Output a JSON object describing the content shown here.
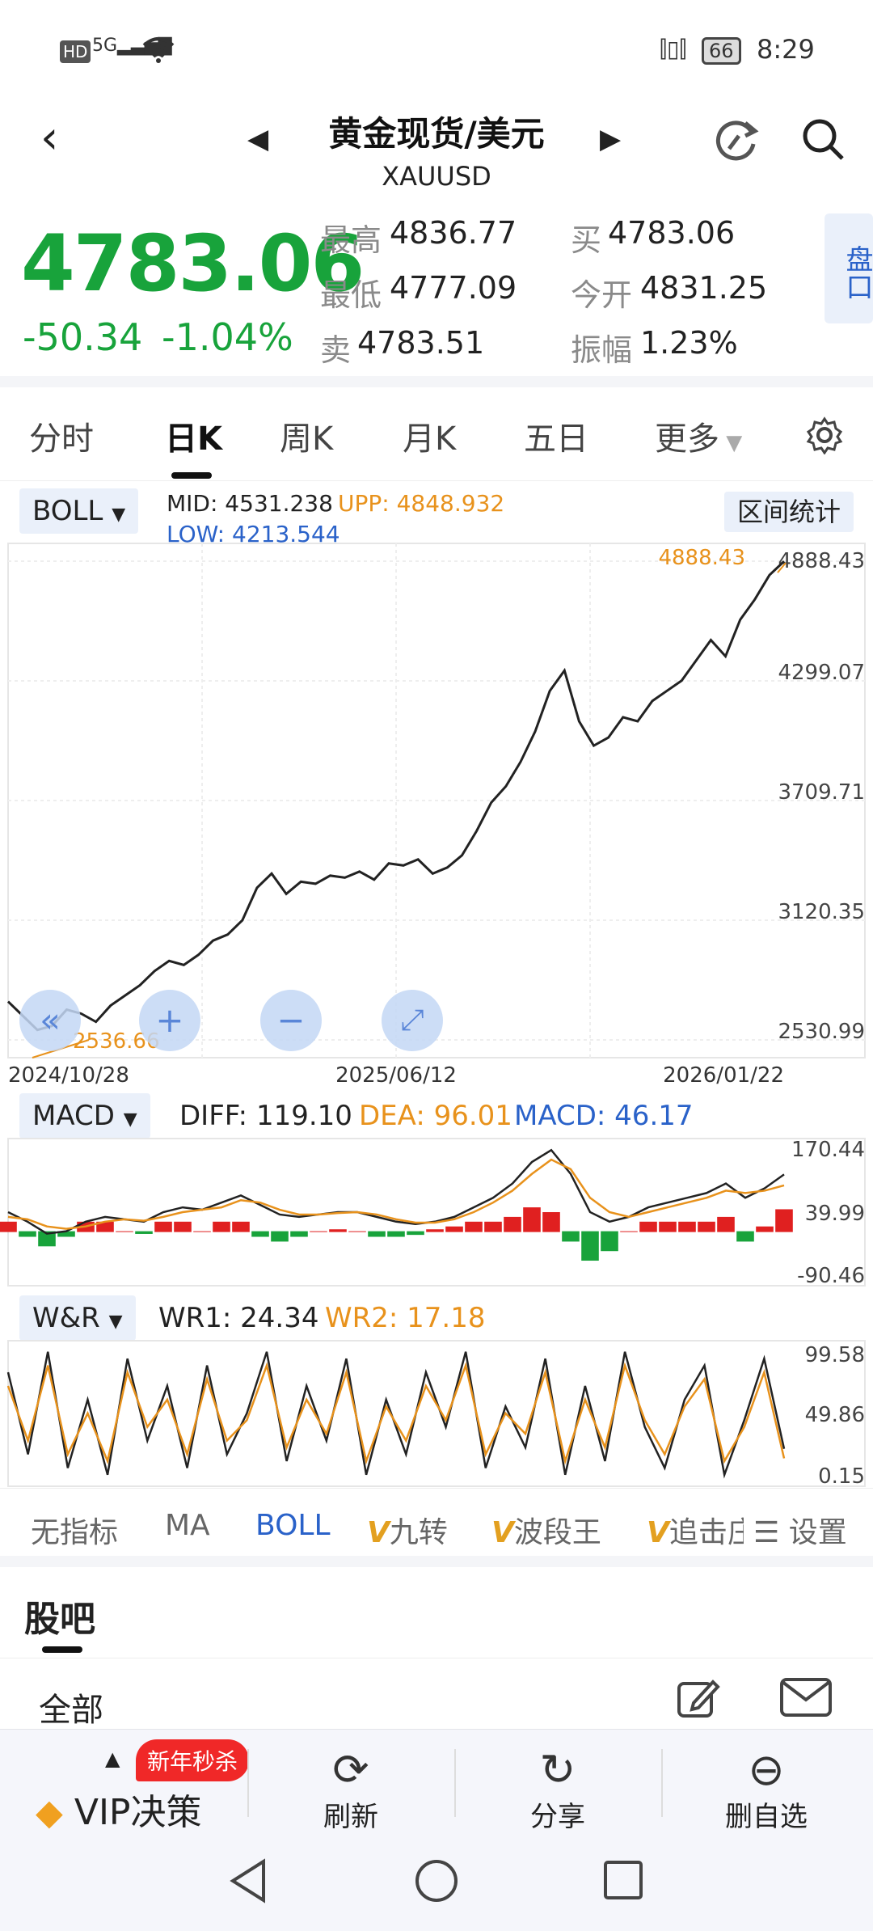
{
  "status_bar": {
    "left_badges": "HD 5G",
    "battery": "66",
    "time": "8:29"
  },
  "header": {
    "title": "黄金现货/美元",
    "subtitle": "XAUUSD",
    "icons": [
      "back-icon",
      "prev-icon",
      "next-icon",
      "share-refresh-icon",
      "search-icon"
    ]
  },
  "quote": {
    "price": "4783.06",
    "change": "-50.34",
    "change_pct": "-1.04%",
    "high_label": "最高",
    "high": "4836.77",
    "low_label": "最低",
    "low": "4777.09",
    "sell_label": "卖",
    "sell": "4783.51",
    "buy_label": "买",
    "buy": "4783.06",
    "open_label": "今开",
    "open": "4831.25",
    "amp_label": "振幅",
    "amp": "1.23%",
    "pankou": "盘口"
  },
  "tabs": [
    "分时",
    "日K",
    "周K",
    "月K",
    "五日",
    "更多"
  ],
  "active_tab": "日K",
  "boll": {
    "selector": "BOLL",
    "mid": "MID: 4531.238",
    "upp": "UPP: 4848.932",
    "low": "LOW: 4213.544",
    "range_stats": "区间统计",
    "max_label": "4888.43",
    "min_label": "2536.66",
    "y_ticks": [
      "4888.43",
      "4299.07",
      "3709.71",
      "3120.35",
      "2530.99"
    ],
    "x_dates": [
      "2024/10/28",
      "2025/06/12",
      "2026/01/22"
    ]
  },
  "macd": {
    "selector": "MACD",
    "diff": "DIFF: 119.10",
    "dea": "DEA: 96.01",
    "macd": "MACD: 46.17",
    "y_ticks": [
      "170.44",
      "39.99",
      "-90.46"
    ]
  },
  "wr": {
    "selector": "W&R",
    "wr1": "WR1: 24.34",
    "wr2": "WR2: 17.18",
    "y_ticks": [
      "99.58",
      "49.86",
      "0.15"
    ]
  },
  "indicator_tabs": [
    "无指标",
    "MA",
    "BOLL",
    "九转",
    "波段王",
    "追击庄",
    "设置"
  ],
  "indicator_active": "BOLL",
  "forum": {
    "title": "股吧",
    "filter": "全部"
  },
  "bottom_bar": {
    "vip": "VIP决策",
    "promo": "新年秒杀",
    "refresh": "刷新",
    "share": "分享",
    "remove": "删自选"
  },
  "colors": {
    "green": "#18a33b",
    "red": "#e02020",
    "orange": "#e8921c",
    "blue": "#2a62c9"
  },
  "chart_data": [
    {
      "type": "line",
      "title": "",
      "x_range": [
        "2024/10/28",
        "2026/01/22"
      ],
      "ylim": [
        2530.99,
        4888.43
      ],
      "series": [
        {
          "name": "",
          "values": [
            2720,
            2650,
            2580,
            2600,
            2680,
            2660,
            2620,
            2700,
            2750,
            2800,
            2870,
            2920,
            2900,
            2950,
            3020,
            3050,
            3120,
            3280,
            3350,
            3250,
            3310,
            3300,
            3340,
            3330,
            3360,
            3320,
            3400,
            3390,
            3420,
            3350,
            3380,
            3440,
            3560,
            3700,
            3780,
            3900,
            4050,
            4250,
            4350,
            4100,
            3980,
            4020,
            4120,
            4100,
            4200,
            4250,
            4300,
            4400,
            4500,
            4420,
            4600,
            4700,
            4820,
            4888
          ]
        }
      ]
    },
    {
      "type": "bar",
      "ylim": [
        -90.46,
        170.44
      ],
      "series": [
        {
          "name": "DIFF",
          "values": [
            40,
            20,
            -5,
            0,
            20,
            30,
            25,
            20,
            40,
            50,
            45,
            60,
            75,
            55,
            35,
            30,
            35,
            40,
            40,
            30,
            20,
            15,
            20,
            30,
            50,
            70,
            100,
            145,
            170,
            120,
            40,
            20,
            30,
            50,
            60,
            70,
            80,
            100,
            70,
            90,
            119
          ]
        },
        {
          "name": "DEA",
          "values": [
            30,
            25,
            10,
            5,
            10,
            20,
            25,
            22,
            30,
            40,
            45,
            50,
            65,
            60,
            45,
            35,
            35,
            38,
            40,
            35,
            25,
            18,
            18,
            25,
            40,
            60,
            85,
            120,
            150,
            130,
            70,
            40,
            30,
            40,
            50,
            60,
            70,
            85,
            80,
            85,
            96
          ]
        }
      ]
    },
    {
      "type": "line",
      "ylim": [
        0.15,
        99.58
      ],
      "series": [
        {
          "name": "WR1",
          "values": [
            80,
            20,
            95,
            10,
            60,
            5,
            90,
            30,
            70,
            10,
            85,
            20,
            50,
            95,
            15,
            70,
            30,
            90,
            5,
            60,
            20,
            80,
            40,
            95,
            10,
            55,
            25,
            90,
            5,
            70,
            15,
            95,
            40,
            10,
            60,
            85,
            5,
            45,
            90,
            24
          ]
        },
        {
          "name": "WR2",
          "values": [
            70,
            30,
            85,
            20,
            50,
            15,
            80,
            40,
            60,
            20,
            75,
            30,
            45,
            85,
            25,
            60,
            35,
            80,
            15,
            55,
            30,
            70,
            45,
            85,
            20,
            50,
            35,
            80,
            15,
            60,
            25,
            85,
            45,
            20,
            55,
            75,
            15,
            40,
            80,
            17
          ]
        }
      ]
    }
  ]
}
